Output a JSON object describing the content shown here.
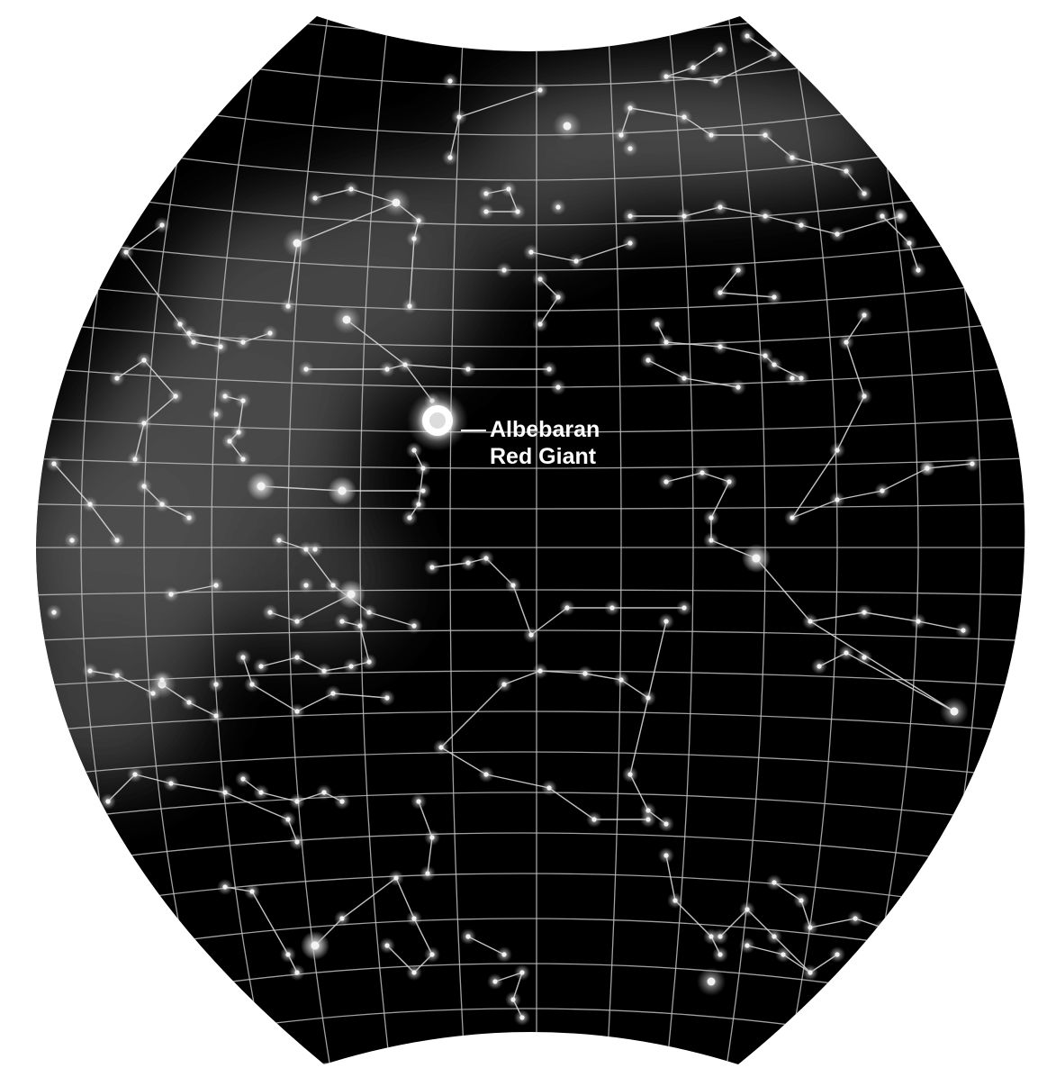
{
  "map": {
    "background_color": "#000000",
    "grid_color": "#bcbcbc",
    "star_color": "#f2f2f2",
    "nebula_color": "#6a6a6a",
    "highlight": {
      "name_label": "Albebaran",
      "type_label": "Red Giant"
    }
  }
}
